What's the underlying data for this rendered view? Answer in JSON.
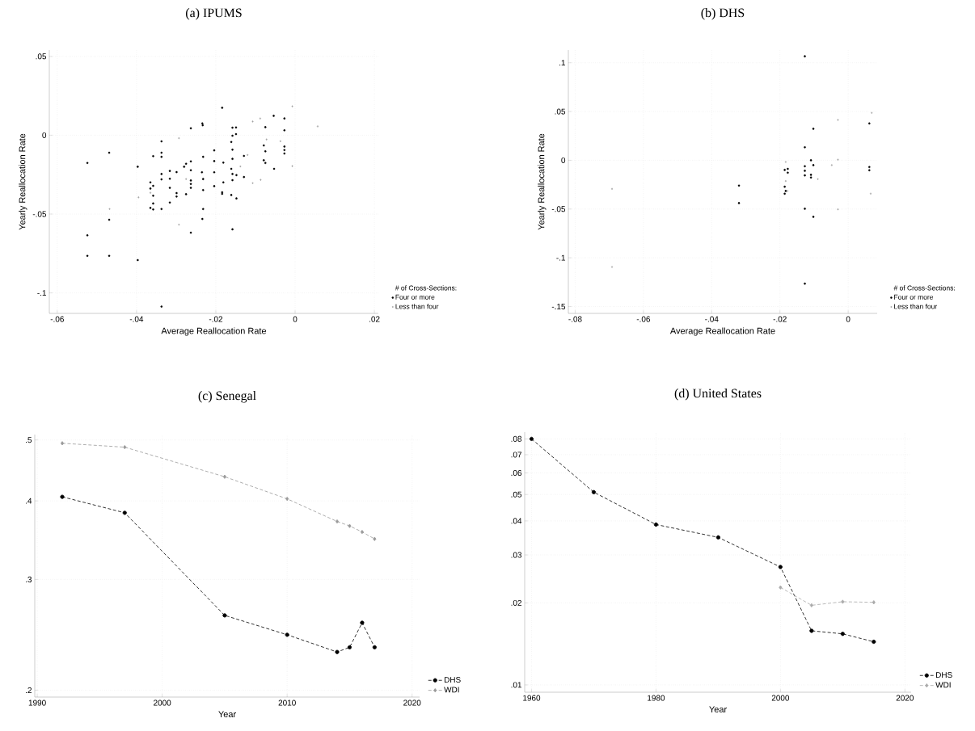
{
  "chart_data": [
    {
      "type": "scatter",
      "title": "(a) IPUMS",
      "xlabel": "Average Reallocation Rate",
      "ylabel": "Yearly Reallocation Rate",
      "legend_title": "# of Cross-Sections:",
      "legend": "bottom right",
      "grid": true,
      "xlim": [
        -0.062,
        0.021
      ],
      "ylim": [
        -0.113,
        0.054
      ],
      "xticks": [
        {
          "value": -0.06,
          "label": "-.06"
        },
        {
          "value": -0.04,
          "label": "-.04"
        },
        {
          "value": -0.02,
          "label": "-.02"
        },
        0,
        {
          "value": 0.02,
          "label": ".02"
        }
      ],
      "yticks": [
        {
          "value": -0.1,
          "label": "-.1"
        },
        {
          "value": -0.05,
          "label": "-.05"
        },
        0,
        {
          "value": 0.05,
          "label": ".05"
        }
      ],
      "series": [
        {
          "name": "Four or more",
          "color": "#000000",
          "marker": "circle",
          "x": [
            -0.0184,
            -0.0234,
            -0.0233,
            -0.0263,
            -0.0158,
            -0.0149,
            -0.0337,
            -0.0469,
            -0.0337,
            -0.0524,
            -0.0397,
            -0.0358,
            -0.0337,
            -0.0204,
            -0.0161,
            -0.0158,
            -0.0149,
            -0.0054,
            -0.0027,
            -0.0075,
            -0.0027,
            -0.0027,
            -0.0027,
            -0.0027,
            -0.0079,
            -0.0075,
            -0.0129,
            -0.0079,
            -0.0075,
            -0.0053,
            -0.0158,
            -0.0158,
            -0.0232,
            -0.0263,
            -0.0275,
            -0.028,
            -0.0204,
            -0.0181,
            -0.0161,
            -0.0316,
            -0.0299,
            -0.0263,
            -0.0235,
            -0.0204,
            -0.0158,
            -0.0148,
            -0.0129,
            -0.0158,
            -0.0337,
            -0.0337,
            -0.0316,
            -0.0365,
            -0.0358,
            -0.0365,
            -0.0263,
            -0.0232,
            -0.0263,
            -0.0263,
            -0.0275,
            -0.0299,
            -0.0316,
            -0.0299,
            -0.0204,
            -0.0232,
            -0.0181,
            -0.0184,
            -0.0184,
            -0.0161,
            -0.0148,
            -0.0358,
            -0.0358,
            -0.0316,
            -0.0365,
            -0.0358,
            -0.0337,
            -0.0232,
            -0.0469,
            -0.0234,
            -0.0263,
            -0.0158,
            -0.0524,
            -0.0524,
            -0.0469,
            -0.0397,
            -0.0337
          ],
          "values": [
            0.0174,
            0.0075,
            0.0063,
            0.0044,
            0.0048,
            0.0049,
            -0.0039,
            -0.0111,
            -0.0111,
            -0.0176,
            -0.02,
            -0.0133,
            -0.0137,
            -0.0096,
            -0.0043,
            -0.0003,
            0.0007,
            0.0123,
            0.0106,
            0.0051,
            0.0031,
            -0.0072,
            -0.0094,
            -0.0116,
            -0.0065,
            -0.0102,
            -0.0131,
            -0.0159,
            -0.0176,
            -0.0213,
            -0.0092,
            -0.015,
            -0.0137,
            -0.0166,
            -0.0181,
            -0.02,
            -0.0164,
            -0.0174,
            -0.0213,
            -0.0227,
            -0.0234,
            -0.0222,
            -0.0235,
            -0.0235,
            -0.0246,
            -0.0253,
            -0.0265,
            -0.0285,
            -0.0246,
            -0.028,
            -0.0276,
            -0.0299,
            -0.0321,
            -0.0338,
            -0.0287,
            -0.0278,
            -0.0309,
            -0.0334,
            -0.0374,
            -0.0367,
            -0.0334,
            -0.0389,
            -0.0323,
            -0.0348,
            -0.0299,
            -0.0362,
            -0.0372,
            -0.0379,
            -0.0401,
            -0.0384,
            -0.0433,
            -0.0427,
            -0.0461,
            -0.0471,
            -0.0468,
            -0.0468,
            -0.0536,
            -0.0531,
            -0.0618,
            -0.0597,
            -0.0635,
            -0.0765,
            -0.0765,
            -0.0792,
            -0.1087
          ]
        },
        {
          "name": "Less than four",
          "color": "#a0a0a0",
          "marker": "diamond",
          "x": [
            -0.0007,
            0.0057,
            -0.0088,
            -0.0107,
            -0.0293,
            -0.0037,
            -0.0072,
            -0.012,
            -0.0138,
            -0.0007,
            -0.0087,
            -0.0107,
            -0.0395,
            -0.0468,
            -0.0293,
            -0.0365,
            -0.0275
          ],
          "values": [
            0.0183,
            0.0056,
            0.0106,
            0.0087,
            -0.0019,
            -0.0038,
            -0.0027,
            -0.0125,
            -0.0198,
            -0.0196,
            -0.0283,
            -0.0304,
            -0.0394,
            -0.0468,
            -0.0567,
            -0.0365,
            -0.0278
          ]
        }
      ]
    },
    {
      "type": "scatter",
      "title": "(b) DHS",
      "xlabel": "Average Reallocation Rate",
      "ylabel": "Yearly Reallocation Rate",
      "legend_title": "# of Cross-Sections:",
      "legend": "bottom right",
      "grid": true,
      "xlim": [
        -0.082,
        0.0085
      ],
      "ylim": [
        -0.157,
        0.113
      ],
      "xticks": [
        {
          "value": -0.08,
          "label": "-.08"
        },
        {
          "value": -0.06,
          "label": "-.06"
        },
        {
          "value": -0.04,
          "label": "-.04"
        },
        {
          "value": -0.02,
          "label": "-.02"
        },
        0
      ],
      "yticks": [
        {
          "value": -0.15,
          "label": "-.15"
        },
        {
          "value": -0.1,
          "label": "-.1"
        },
        {
          "value": -0.05,
          "label": "-.05"
        },
        0,
        {
          "value": 0.05,
          "label": ".05"
        },
        {
          "value": 0.1,
          "label": ".1"
        }
      ],
      "series": [
        {
          "name": "Four or more",
          "color": "#000000",
          "marker": "circle",
          "x": [
            -0.032,
            -0.032,
            -0.0127,
            -0.0102,
            -0.0127,
            -0.0109,
            -0.0102,
            -0.0127,
            -0.0127,
            -0.0127,
            -0.0109,
            -0.0109,
            -0.0186,
            -0.0177,
            -0.0177,
            -0.0186,
            -0.0183,
            -0.0186,
            -0.0127,
            -0.0102,
            -0.0127,
            0.0062,
            0.0062,
            0.0062
          ],
          "values": [
            -0.026,
            -0.0439,
            0.1066,
            0.0323,
            0.0133,
            0.0,
            -0.005,
            -0.0061,
            -0.0108,
            -0.0155,
            -0.0149,
            -0.0177,
            -0.0099,
            -0.0088,
            -0.0127,
            -0.0271,
            -0.0315,
            -0.0343,
            -0.0497,
            -0.058,
            -0.1265,
            0.0378,
            -0.0069,
            -0.0102
          ]
        },
        {
          "name": "Less than four",
          "color": "#a0a0a0",
          "marker": "diamond",
          "x": [
            -0.0692,
            -0.0692,
            -0.0089,
            -0.0048,
            -0.0183,
            -0.0183,
            -0.0178,
            -0.003,
            -0.003,
            -0.003,
            0.0069,
            0.0066
          ],
          "values": [
            -0.0293,
            -0.1094,
            -0.0193,
            -0.005,
            -0.0017,
            -0.0213,
            -0.0315,
            0.0414,
            0.0006,
            -0.0503,
            0.0486,
            -0.0342
          ]
        }
      ]
    },
    {
      "type": "line",
      "title": "(c) Senegal",
      "xlabel": "Year",
      "legend": "bottom right",
      "grid": true,
      "log": "y",
      "xlim": [
        1989.8,
        2020.6
      ],
      "ylim": [
        0.195,
        0.51
      ],
      "xticks": [
        1990,
        2000,
        2010,
        2020
      ],
      "yticks": [
        {
          "value": 0.2,
          "label": ".2"
        },
        {
          "value": 0.3,
          "label": ".3"
        },
        {
          "value": 0.4,
          "label": ".4"
        },
        {
          "value": 0.5,
          "label": ".5"
        }
      ],
      "series": [
        {
          "name": "DHS",
          "color": "#000000",
          "marker": "circle",
          "line_style": "dashed",
          "x": [
            1992,
            1997,
            2005,
            2010,
            2014,
            2015,
            2016,
            2017
          ],
          "values": [
            0.406,
            0.383,
            0.263,
            0.245,
            0.23,
            0.234,
            0.256,
            0.234
          ]
        },
        {
          "name": "WDI",
          "color": "#999999",
          "marker": "diamond",
          "line_style": "dashed",
          "x": [
            1992,
            1997,
            2005,
            2010,
            2014,
            2015,
            2016,
            2017
          ],
          "values": [
            0.494,
            0.487,
            0.437,
            0.403,
            0.371,
            0.365,
            0.357,
            0.348
          ]
        }
      ]
    },
    {
      "type": "line",
      "title": "(d) United States",
      "xlabel": "Year",
      "legend": "bottom right",
      "grid": true,
      "log": "y",
      "xlim": [
        1958.9,
        2021
      ],
      "ylim": [
        0.0094,
        0.0847
      ],
      "xticks": [
        1960,
        1980,
        2000,
        2020
      ],
      "yticks": [
        {
          "value": 0.01,
          "label": ".01"
        },
        {
          "value": 0.02,
          "label": ".02"
        },
        {
          "value": 0.03,
          "label": ".03"
        },
        {
          "value": 0.04,
          "label": ".04"
        },
        {
          "value": 0.05,
          "label": ".05"
        },
        {
          "value": 0.06,
          "label": ".06"
        },
        {
          "value": 0.07,
          "label": ".07"
        },
        {
          "value": 0.08,
          "label": ".08"
        }
      ],
      "series": [
        {
          "name": "DHS",
          "color": "#000000",
          "marker": "circle",
          "line_style": "dashed",
          "x": [
            1960,
            1970,
            1980,
            1990,
            2000,
            2005,
            2010,
            2015
          ],
          "values": [
            0.08,
            0.051,
            0.0388,
            0.0348,
            0.0271,
            0.0158,
            0.0154,
            0.0144
          ]
        },
        {
          "name": "WDI",
          "color": "#aaaaaa",
          "marker": "diamond",
          "line_style": "dashed",
          "x": [
            2000,
            2005,
            2010,
            2015
          ],
          "values": [
            0.0228,
            0.0196,
            0.0202,
            0.0201
          ]
        }
      ]
    }
  ]
}
